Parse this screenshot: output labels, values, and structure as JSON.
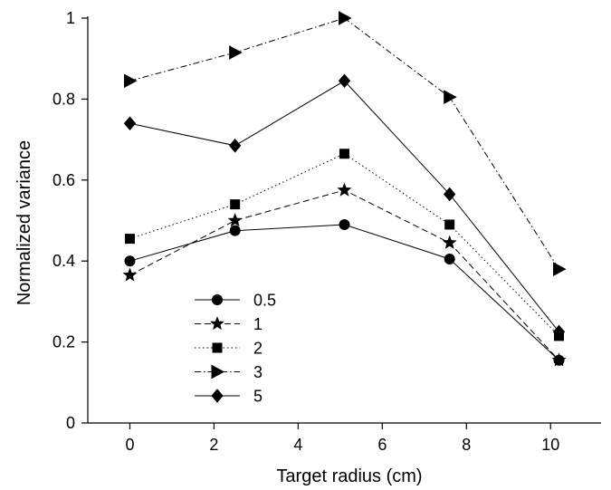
{
  "chart_data": {
    "type": "line",
    "title": "",
    "xlabel": "Target radius (cm)",
    "ylabel": "Normalized variance",
    "xlim": [
      -1,
      11.2
    ],
    "ylim": [
      0,
      1
    ],
    "xticks": [
      0,
      2,
      4,
      6,
      8,
      10
    ],
    "yticks": [
      0,
      0.2,
      0.4,
      0.6,
      0.8,
      1
    ],
    "x": [
      0,
      2.5,
      5.1,
      7.6,
      10.2
    ],
    "grid": false,
    "legend": "lower-left",
    "series": [
      {
        "name": "0.5",
        "marker": "circle",
        "dash": "solid",
        "values": [
          0.4,
          0.475,
          0.49,
          0.405,
          0.155
        ]
      },
      {
        "name": "1",
        "marker": "star",
        "dash": "dashed",
        "values": [
          0.365,
          0.5,
          0.575,
          0.445,
          0.155
        ]
      },
      {
        "name": "2",
        "marker": "square",
        "dash": "dotted",
        "values": [
          0.455,
          0.54,
          0.665,
          0.49,
          0.215
        ]
      },
      {
        "name": "3",
        "marker": "triangle-right",
        "dash": "dashdot",
        "values": [
          0.845,
          0.915,
          1.0,
          0.805,
          0.38
        ]
      },
      {
        "name": "5",
        "marker": "diamond",
        "dash": "solid",
        "values": [
          0.74,
          0.685,
          0.845,
          0.565,
          0.225
        ]
      }
    ]
  }
}
